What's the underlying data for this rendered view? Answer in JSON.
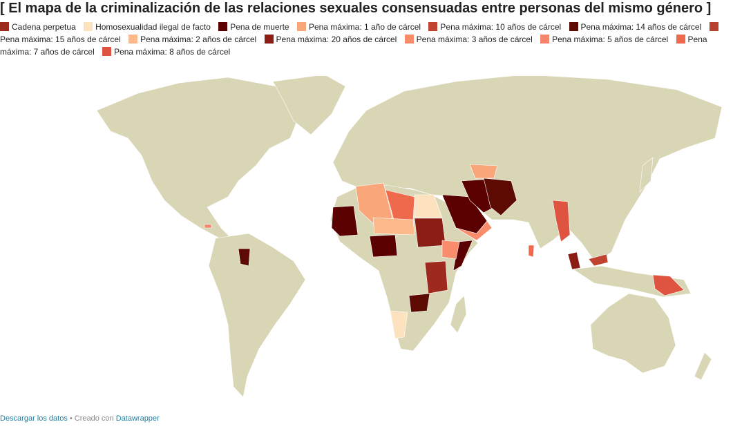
{
  "title": "[ El mapa de la criminalización de las relaciones sexuales consensuadas entre personas del mismo género ]",
  "legend": [
    {
      "label": "Cadena perpetua",
      "color": "#9e2a1f"
    },
    {
      "label": "Homosexualidad ilegal de facto",
      "color": "#fde2c0"
    },
    {
      "label": "Pena de muerte",
      "color": "#5a0000"
    },
    {
      "label": "Pena máxima: 1 año de cárcel",
      "color": "#f9a67a"
    },
    {
      "label": "Pena máxima: 10 años de cárcel",
      "color": "#c0432f"
    },
    {
      "label": "Pena máxima: 14 años de cárcel",
      "color": "#5c0a02"
    },
    {
      "label": "Pena máxima: 15 años de cárcel",
      "color": "#b7432f"
    },
    {
      "label": "Pena máxima: 2 años de cárcel",
      "color": "#fbb98c"
    },
    {
      "label": "Pena máxima: 20 años de cárcel",
      "color": "#8a1e14"
    },
    {
      "label": "Pena máxima: 3 años de cárcel",
      "color": "#f98c6a"
    },
    {
      "label": "Pena máxima: 5 años de cárcel",
      "color": "#f6856a"
    },
    {
      "label": "Pena máxima: 7 años de cárcel",
      "color": "#ef694d"
    },
    {
      "label": "Pena máxima: 8 años de cárcel",
      "color": "#de5440"
    }
  ],
  "footer": {
    "download": "Descargar los datos",
    "separator": "• Creado con",
    "tool": "Datawrapper"
  }
}
